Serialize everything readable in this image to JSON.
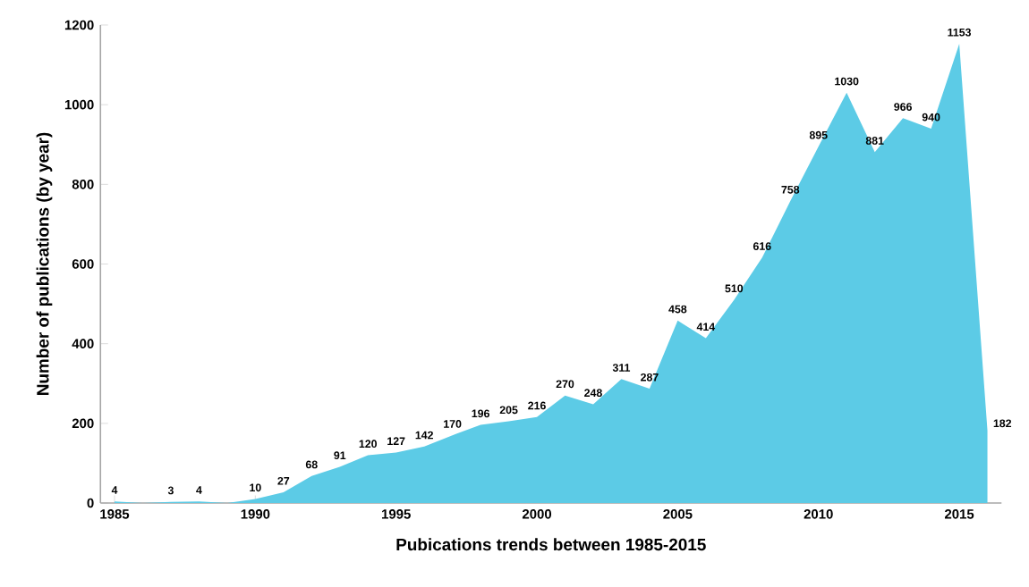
{
  "chart_data": {
    "type": "area",
    "xlabel": "Pubications trends between 1985-2015",
    "ylabel": "Number of publications (by year)",
    "categories": [
      "1985",
      null,
      null,
      null,
      null,
      "1990",
      null,
      null,
      null,
      null,
      "1995",
      null,
      null,
      null,
      null,
      "2000",
      null,
      null,
      null,
      null,
      "2005",
      null,
      null,
      null,
      null,
      "2010",
      null,
      null,
      null,
      null,
      "2015",
      null
    ],
    "values": [
      4,
      0,
      3,
      4,
      0,
      10,
      27,
      68,
      91,
      120,
      127,
      142,
      170,
      196,
      205,
      216,
      270,
      248,
      311,
      287,
      458,
      414,
      510,
      616,
      758,
      895,
      1030,
      881,
      966,
      940,
      1153,
      182
    ],
    "value_labels": [
      "4",
      null,
      "3",
      "4",
      null,
      "10",
      "27",
      "68",
      "91",
      "120",
      "127",
      "142",
      "170",
      "196",
      "205",
      "216",
      "270",
      "248",
      "311",
      "287",
      "458",
      "414",
      "510",
      "616",
      "758",
      "895",
      "1030",
      "881",
      "966",
      "940",
      "1153",
      "182"
    ],
    "color": "#5ccbe6",
    "ylim": [
      0,
      1200
    ],
    "yticks": [
      0,
      200,
      400,
      600,
      800,
      1000,
      1200
    ],
    "grid": false
  }
}
